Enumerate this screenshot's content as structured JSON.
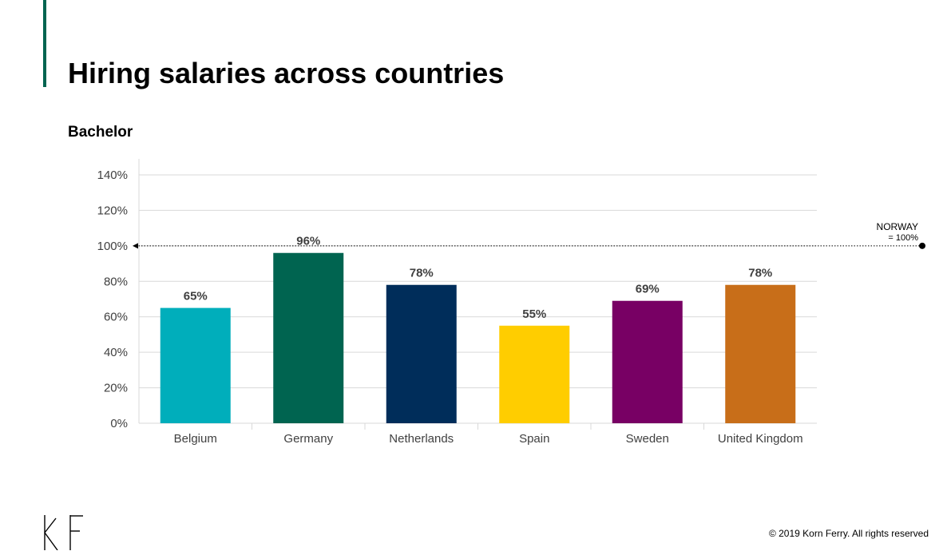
{
  "slide": {
    "title": "Hiring salaries across countries",
    "subtitle": "Bachelor",
    "copyright": "© 2019 Korn Ferry. All rights reserved",
    "logo_text": "KF"
  },
  "colors": {
    "accent": "#006450",
    "grid": "#d9d9d9",
    "axis_text": "#404040"
  },
  "chart_data": {
    "type": "bar",
    "title": "",
    "xlabel": "",
    "ylabel": "",
    "categories": [
      "Belgium",
      "Germany",
      "Netherlands",
      "Spain",
      "Sweden",
      "United Kingdom"
    ],
    "values": [
      65,
      96,
      78,
      55,
      69,
      78
    ],
    "data_labels": [
      "65%",
      "96%",
      "78%",
      "55%",
      "69%",
      "78%"
    ],
    "bar_colors": [
      "#00aebb",
      "#006450",
      "#002d5a",
      "#ffcd00",
      "#780064",
      "#c86e19"
    ],
    "ylim": [
      0,
      140
    ],
    "yticks": [
      0,
      20,
      40,
      60,
      80,
      100,
      120,
      140
    ],
    "ytick_labels": [
      "0%",
      "20%",
      "40%",
      "60%",
      "80%",
      "100%",
      "120%",
      "140%"
    ],
    "grid": true,
    "reference_line": {
      "value": 100,
      "label_line1": "NORWAY",
      "label_line2": "= 100%"
    }
  }
}
